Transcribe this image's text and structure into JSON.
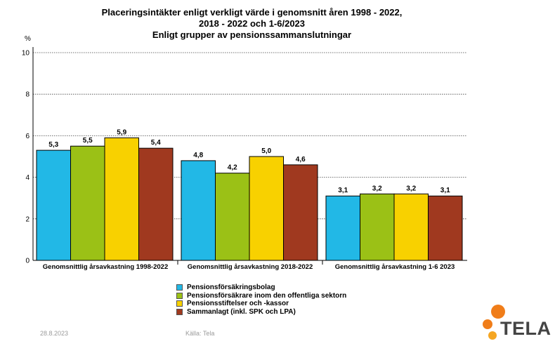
{
  "title": {
    "line1": "Placeringsintäkter enligt verkligt värde i genomsnitt åren 1998 - 2022,",
    "line2": "2018 - 2022 och 1-6/2023",
    "line3": "Enligt grupper av pensionssammanslutningar"
  },
  "footer": {
    "date": "28.8.2023",
    "source": "Källa: Tela"
  },
  "logo": {
    "text": "TELA"
  },
  "chart_data": {
    "type": "bar",
    "y_unit": "%",
    "ylim": [
      0,
      10
    ],
    "yticks": [
      "0",
      "2",
      "4",
      "6",
      "8",
      "10"
    ],
    "grid": true,
    "legend_position": "bottom",
    "categories": [
      "Genomsnittlig årsavkastning 1998-2022",
      "Genomsnittlig årsavkastning 2018-2022",
      "Genomsnittlig årsavkastning 1-6 2023"
    ],
    "series": [
      {
        "name": "Pensionsförsäkringsbolag",
        "color": "#22b8e6",
        "values": [
          5.3,
          4.8,
          3.1
        ],
        "labels": [
          "5,3",
          "4,8",
          "3,1"
        ]
      },
      {
        "name": "Pensionsförsäkrare inom den offentliga sektorn",
        "color": "#9bc116",
        "values": [
          5.5,
          4.2,
          3.2
        ],
        "labels": [
          "5,5",
          "4,2",
          "3,2"
        ]
      },
      {
        "name": "Pensionsstiftelser och -kassor",
        "color": "#f8d100",
        "values": [
          5.9,
          5.0,
          3.2
        ],
        "labels": [
          "5,9",
          "5,0",
          "3,2"
        ]
      },
      {
        "name": "Sammanlagt (inkl. SPK och LPA)",
        "color": "#a0391f",
        "values": [
          5.4,
          4.6,
          3.1
        ],
        "labels": [
          "5,4",
          "4,6",
          "3,1"
        ]
      }
    ]
  }
}
